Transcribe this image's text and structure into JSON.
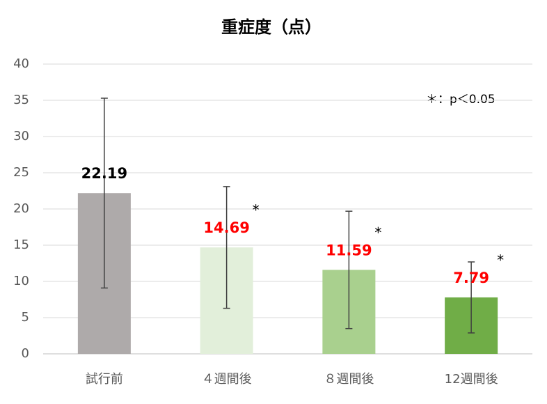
{
  "chart_data": {
    "type": "bar",
    "title": "重症度（点）",
    "categories": [
      "試行前",
      "４週間後",
      "８週間後",
      "12週間後"
    ],
    "values": [
      22.19,
      14.69,
      11.59,
      7.79
    ],
    "errors": [
      13.1,
      8.4,
      8.1,
      4.9
    ],
    "colors": [
      "#aeaaaa",
      "#e2efda",
      "#a9d08e",
      "#70ad47"
    ],
    "label_colors": [
      "#000000",
      "#ff0000",
      "#ff0000",
      "#ff0000"
    ],
    "significance": [
      null,
      "*",
      "*",
      "*"
    ],
    "annotation": "＊：p＜0.05",
    "ylim": [
      0,
      40
    ],
    "yticks": [
      0,
      5,
      10,
      15,
      20,
      25,
      30,
      35,
      40
    ],
    "grid": true
  }
}
